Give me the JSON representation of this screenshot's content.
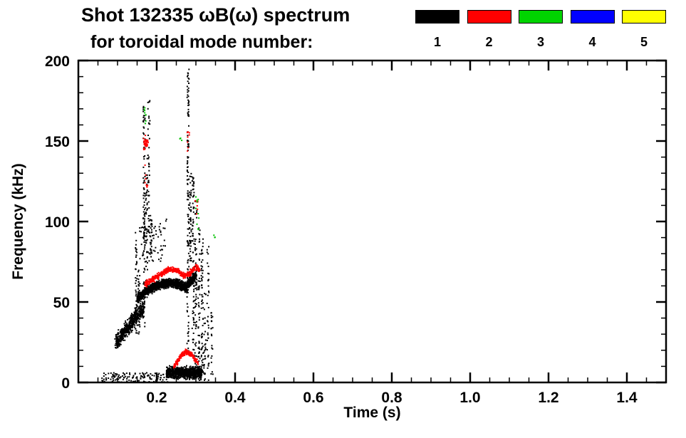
{
  "header": {
    "title": "Shot 132335 ωB(ω) spectrum",
    "subtitle": "for toroidal mode number:"
  },
  "axes": {
    "xlabel": "Time (s)",
    "ylabel": "Frequency (kHz)"
  },
  "chart_data": {
    "type": "scatter",
    "title": "Shot 132335 ωB(ω) spectrum",
    "subtitle": "for toroidal mode number:",
    "xlabel": "Time (s)",
    "ylabel": "Frequency (kHz)",
    "xlim": [
      0,
      1.5
    ],
    "ylim": [
      0,
      200
    ],
    "grid": false,
    "legend_position": "top-right",
    "ticks": {
      "x_major": [
        0.2,
        0.4,
        0.6,
        0.8,
        1.0,
        1.2,
        1.4
      ],
      "x_labels": [
        "0.2",
        "0.4",
        "0.6",
        "0.8",
        "1.0",
        "1.2",
        "1.4"
      ],
      "x_minor_step": 0.05,
      "y_major": [
        0,
        50,
        100,
        150,
        200
      ],
      "y_labels": [
        "0",
        "50",
        "100",
        "150",
        "200"
      ],
      "y_minor_step": 10
    },
    "legend": [
      {
        "label": "1",
        "color": "#000000"
      },
      {
        "label": "2",
        "color": "#ff0000"
      },
      {
        "label": "3",
        "color": "#00d400"
      },
      {
        "label": "4",
        "color": "#0000ff"
      },
      {
        "label": "5",
        "color": "#ffff00"
      }
    ],
    "series": [
      {
        "name": "mode n=1",
        "color": "#000000",
        "clusters": [
          {
            "type": "path_band",
            "path": [
              [
                0.095,
                24
              ],
              [
                0.115,
                31
              ],
              [
                0.135,
                37
              ],
              [
                0.155,
                43
              ],
              [
                0.168,
                47
              ]
            ],
            "spread": 7,
            "count": 520
          },
          {
            "type": "path_band",
            "path": [
              [
                0.15,
                52
              ],
              [
                0.175,
                57
              ],
              [
                0.2,
                60
              ],
              [
                0.23,
                62
              ],
              [
                0.255,
                61
              ],
              [
                0.275,
                59
              ],
              [
                0.285,
                62
              ],
              [
                0.3,
                66
              ]
            ],
            "spread": 4,
            "count": 1400
          },
          {
            "type": "blob",
            "t": [
              0.225,
              0.315
            ],
            "fcenter": 6,
            "fspread": 5,
            "fclip": [
              0,
              15
            ],
            "count": 900
          },
          {
            "type": "uniform",
            "t": [
              0.06,
              0.23
            ],
            "f": [
              0,
              6
            ],
            "count": 140
          },
          {
            "type": "uniform",
            "t": [
              0.155,
              0.225
            ],
            "f": [
              75,
              102
            ],
            "count": 70
          },
          {
            "type": "vspike",
            "t": 0.148,
            "f": [
              28,
              95
            ],
            "count": 45
          },
          {
            "type": "vspike",
            "t": 0.155,
            "f": [
              30,
              70
            ],
            "count": 30
          },
          {
            "type": "vspike",
            "t": 0.168,
            "f": [
              30,
              172
            ],
            "count": 95
          },
          {
            "type": "vspike",
            "t": 0.174,
            "f": [
              50,
              140
            ],
            "count": 50
          },
          {
            "type": "vspike",
            "t": 0.18,
            "f": [
              90,
              175
            ],
            "count": 40
          },
          {
            "type": "vspike",
            "t": 0.186,
            "f": [
              80,
              105
            ],
            "count": 28
          },
          {
            "type": "vspike",
            "t": 0.28,
            "f": [
              18,
              196
            ],
            "count": 130
          },
          {
            "type": "vspike",
            "t": 0.286,
            "f": [
              60,
              130
            ],
            "count": 55
          },
          {
            "type": "vspike",
            "t": 0.293,
            "f": [
              15,
              128
            ],
            "count": 70
          },
          {
            "type": "vspike",
            "t": 0.3,
            "f": [
              10,
              116
            ],
            "count": 60
          },
          {
            "type": "vspike",
            "t": 0.308,
            "f": [
              5,
              96
            ],
            "count": 55
          },
          {
            "type": "vspike",
            "t": 0.316,
            "f": [
              3,
              90
            ],
            "count": 60
          },
          {
            "type": "vspike",
            "t": 0.323,
            "f": [
              0,
              62
            ],
            "count": 32
          },
          {
            "type": "vspike",
            "t": 0.331,
            "f": [
              0,
              88
            ],
            "count": 36
          },
          {
            "type": "vspike",
            "t": 0.341,
            "f": [
              0,
              46
            ],
            "count": 22
          }
        ]
      },
      {
        "name": "mode n=2",
        "color": "#ff0000",
        "clusters": [
          {
            "type": "path_band",
            "path": [
              [
                0.17,
                61
              ],
              [
                0.19,
                64
              ],
              [
                0.21,
                67
              ],
              [
                0.23,
                70
              ],
              [
                0.25,
                70
              ],
              [
                0.27,
                66
              ],
              [
                0.285,
                68
              ],
              [
                0.3,
                72
              ],
              [
                0.31,
                70
              ]
            ],
            "spread": 2.5,
            "count": 460
          },
          {
            "type": "path_band",
            "path": [
              [
                0.245,
                10
              ],
              [
                0.26,
                16
              ],
              [
                0.275,
                19
              ],
              [
                0.29,
                17
              ],
              [
                0.305,
                12
              ]
            ],
            "spread": 2,
            "count": 230
          },
          {
            "type": "blob",
            "t": [
              0.166,
              0.178
            ],
            "fcenter": 149,
            "fspread": 6,
            "fclip": [
              138,
              160
            ],
            "count": 34
          },
          {
            "type": "uniform",
            "t": [
              0.17,
              0.177
            ],
            "f": [
              120,
              136
            ],
            "count": 8
          },
          {
            "type": "uniform",
            "t": [
              0.298,
              0.306
            ],
            "f": [
              104,
              113
            ],
            "count": 7
          },
          {
            "type": "uniform",
            "t": [
              0.276,
              0.284
            ],
            "f": [
              142,
              158
            ],
            "count": 8
          }
        ]
      },
      {
        "name": "mode n=3",
        "color": "#00c000",
        "clusters": [
          {
            "type": "uniform",
            "t": [
              0.166,
              0.173
            ],
            "f": [
              160,
              173
            ],
            "count": 8
          },
          {
            "type": "uniform",
            "t": [
              0.298,
              0.308
            ],
            "f": [
              95,
              120
            ],
            "count": 10
          },
          {
            "type": "uniform",
            "t": [
              0.258,
              0.264
            ],
            "f": [
              147,
              153
            ],
            "count": 3
          },
          {
            "type": "uniform",
            "t": [
              0.343,
              0.349
            ],
            "f": [
              86,
              93
            ],
            "count": 3
          }
        ]
      },
      {
        "name": "mode n=4",
        "color": "#0000ff",
        "clusters": []
      },
      {
        "name": "mode n=5",
        "color": "#ffff00",
        "clusters": []
      }
    ]
  }
}
